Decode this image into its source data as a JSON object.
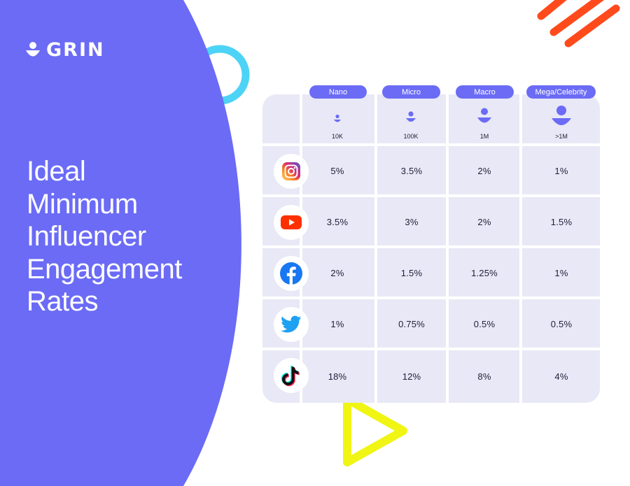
{
  "brand": {
    "name": "GRIN"
  },
  "headline": {
    "lines": [
      "Ideal",
      "Minimum",
      "Influencer",
      "Engagement",
      "Rates"
    ]
  },
  "colors": {
    "panel": "#6b6bf6",
    "accent_cyan": "#4dd3f5",
    "accent_orange": "#ff4a1c",
    "accent_yellow": "#f0f514",
    "table_bg": "#e8e8f6"
  },
  "tiers": [
    {
      "label": "Nano",
      "followers": "10K",
      "icon": "nano-person-icon"
    },
    {
      "label": "Micro",
      "followers": "100K",
      "icon": "micro-person-icon"
    },
    {
      "label": "Macro",
      "followers": "1M",
      "icon": "macro-person-icon"
    },
    {
      "label": "Mega/Celebrity",
      "followers": ">1M",
      "icon": "mega-person-icon"
    }
  ],
  "rows": [
    {
      "platform": "Instagram",
      "icon": "instagram-icon",
      "rates": [
        "5%",
        "3.5%",
        "2%",
        "1%"
      ]
    },
    {
      "platform": "YouTube",
      "icon": "youtube-icon",
      "rates": [
        "3.5%",
        "3%",
        "2%",
        "1.5%"
      ]
    },
    {
      "platform": "Facebook",
      "icon": "facebook-icon",
      "rates": [
        "2%",
        "1.5%",
        "1.25%",
        "1%"
      ]
    },
    {
      "platform": "Twitter",
      "icon": "twitter-icon",
      "rates": [
        "1%",
        "0.75%",
        "0.5%",
        "0.5%"
      ]
    },
    {
      "platform": "TikTok",
      "icon": "tiktok-icon",
      "rates": [
        "18%",
        "12%",
        "8%",
        "4%"
      ]
    }
  ]
}
